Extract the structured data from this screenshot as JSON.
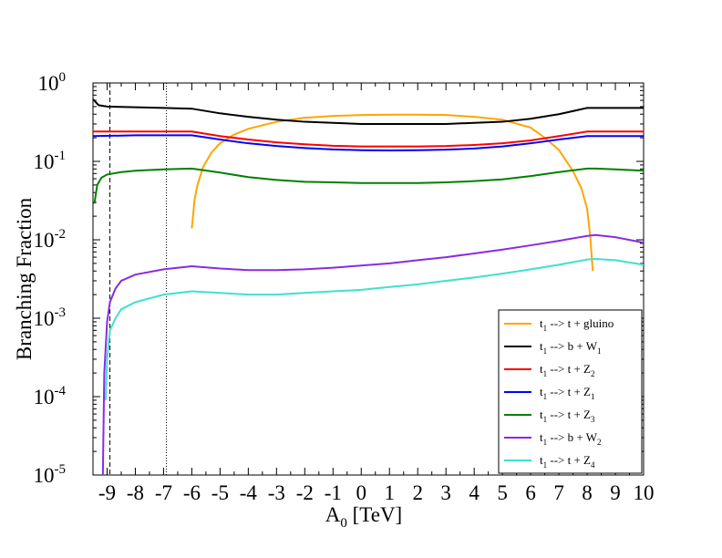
{
  "chart_data": {
    "type": "line",
    "xlabel": "A",
    "xlabel_sub": "0",
    "xlabel_unit": " [TeV]",
    "ylabel": "Branching Fraction",
    "xlim": [
      -9.5,
      10
    ],
    "ylim": [
      1e-05,
      1
    ],
    "yscale": "log",
    "x_ticks": [
      -9,
      -8,
      -7,
      -6,
      -5,
      -4,
      -3,
      -2,
      -1,
      0,
      1,
      2,
      3,
      4,
      5,
      6,
      7,
      8,
      9,
      10
    ],
    "y_ticks": [
      {
        "value": 1e-05,
        "base": "10",
        "exp": "-5"
      },
      {
        "value": 0.0001,
        "base": "10",
        "exp": "-4"
      },
      {
        "value": 0.001,
        "base": "10",
        "exp": "-3"
      },
      {
        "value": 0.01,
        "base": "10",
        "exp": "-2"
      },
      {
        "value": 0.1,
        "base": "10",
        "exp": "-1"
      },
      {
        "value": 1,
        "base": "10",
        "exp": "0"
      }
    ],
    "vertical_lines": [
      {
        "x": -8.9,
        "style": "dashed"
      },
      {
        "x": -6.9,
        "style": "dotted"
      }
    ],
    "legend_position": "bottom-right",
    "series": [
      {
        "name": "t1 --> t + gluino",
        "label_main": "t",
        "label_sub": "1",
        "label_rest": " --> t + gluino",
        "label_sub2": "",
        "color": "#ffa500",
        "points": [
          [
            -6.0,
            0.014
          ],
          [
            -5.9,
            0.033
          ],
          [
            -5.8,
            0.05
          ],
          [
            -5.6,
            0.085
          ],
          [
            -5.3,
            0.13
          ],
          [
            -5.0,
            0.17
          ],
          [
            -4.5,
            0.22
          ],
          [
            -4.0,
            0.26
          ],
          [
            -3.0,
            0.32
          ],
          [
            -2.0,
            0.36
          ],
          [
            -1.0,
            0.38
          ],
          [
            0.0,
            0.39
          ],
          [
            1.0,
            0.395
          ],
          [
            2.0,
            0.395
          ],
          [
            3.0,
            0.39
          ],
          [
            4.0,
            0.37
          ],
          [
            5.0,
            0.34
          ],
          [
            6.0,
            0.27
          ],
          [
            6.5,
            0.2
          ],
          [
            7.0,
            0.14
          ],
          [
            7.5,
            0.075
          ],
          [
            7.8,
            0.045
          ],
          [
            8.0,
            0.025
          ],
          [
            8.1,
            0.012
          ],
          [
            8.15,
            0.007
          ],
          [
            8.2,
            0.004
          ]
        ]
      },
      {
        "name": "t1 --> b + W1",
        "label_main": "t",
        "label_sub": "1",
        "label_rest": " --> b + W",
        "label_sub2": "1",
        "color": "#000000",
        "points": [
          [
            -9.5,
            0.62
          ],
          [
            -9.3,
            0.52
          ],
          [
            -9.0,
            0.5
          ],
          [
            -8.0,
            0.49
          ],
          [
            -7.0,
            0.48
          ],
          [
            -6.0,
            0.47
          ],
          [
            -5.0,
            0.41
          ],
          [
            -4.0,
            0.37
          ],
          [
            -3.0,
            0.34
          ],
          [
            -2.0,
            0.32
          ],
          [
            -1.0,
            0.31
          ],
          [
            0.0,
            0.3
          ],
          [
            1.0,
            0.3
          ],
          [
            2.0,
            0.3
          ],
          [
            3.0,
            0.3
          ],
          [
            4.0,
            0.31
          ],
          [
            5.0,
            0.32
          ],
          [
            6.0,
            0.35
          ],
          [
            7.0,
            0.4
          ],
          [
            8.0,
            0.48
          ],
          [
            8.3,
            0.48
          ],
          [
            9.0,
            0.48
          ],
          [
            10.0,
            0.48
          ]
        ]
      },
      {
        "name": "t1 --> t + Z2",
        "label_main": "t",
        "label_sub": "1",
        "label_rest": " --> t + Z",
        "label_sub2": "2",
        "color": "#ff0000",
        "points": [
          [
            -9.5,
            0.24
          ],
          [
            -8.0,
            0.24
          ],
          [
            -7.0,
            0.24
          ],
          [
            -6.0,
            0.24
          ],
          [
            -5.0,
            0.21
          ],
          [
            -4.0,
            0.19
          ],
          [
            -3.0,
            0.175
          ],
          [
            -2.0,
            0.165
          ],
          [
            -1.0,
            0.158
          ],
          [
            0.0,
            0.155
          ],
          [
            1.0,
            0.155
          ],
          [
            2.0,
            0.155
          ],
          [
            3.0,
            0.157
          ],
          [
            4.0,
            0.162
          ],
          [
            5.0,
            0.17
          ],
          [
            6.0,
            0.185
          ],
          [
            7.0,
            0.21
          ],
          [
            8.0,
            0.24
          ],
          [
            8.3,
            0.24
          ],
          [
            10.0,
            0.24
          ]
        ]
      },
      {
        "name": "t1 --> t + Z1",
        "label_main": "t",
        "label_sub": "1",
        "label_rest": " --> t + Z",
        "label_sub2": "1",
        "color": "#0000ff",
        "points": [
          [
            -9.5,
            0.21
          ],
          [
            -8.0,
            0.215
          ],
          [
            -7.0,
            0.215
          ],
          [
            -6.0,
            0.215
          ],
          [
            -5.0,
            0.19
          ],
          [
            -4.0,
            0.17
          ],
          [
            -3.0,
            0.157
          ],
          [
            -2.0,
            0.148
          ],
          [
            -1.0,
            0.142
          ],
          [
            0.0,
            0.139
          ],
          [
            1.0,
            0.138
          ],
          [
            2.0,
            0.139
          ],
          [
            3.0,
            0.141
          ],
          [
            4.0,
            0.146
          ],
          [
            5.0,
            0.155
          ],
          [
            6.0,
            0.17
          ],
          [
            7.0,
            0.19
          ],
          [
            8.0,
            0.21
          ],
          [
            8.3,
            0.21
          ],
          [
            10.0,
            0.21
          ]
        ]
      },
      {
        "name": "t1 --> t + Z3",
        "label_main": "t",
        "label_sub": "1",
        "label_rest": " --> t + Z",
        "label_sub2": "3",
        "color": "#008000",
        "points": [
          [
            -9.45,
            0.029
          ],
          [
            -9.35,
            0.05
          ],
          [
            -9.2,
            0.062
          ],
          [
            -9.0,
            0.068
          ],
          [
            -8.5,
            0.073
          ],
          [
            -8.0,
            0.076
          ],
          [
            -7.0,
            0.079
          ],
          [
            -6.0,
            0.081
          ],
          [
            -5.0,
            0.072
          ],
          [
            -4.0,
            0.063
          ],
          [
            -3.0,
            0.058
          ],
          [
            -2.0,
            0.055
          ],
          [
            -1.0,
            0.054
          ],
          [
            0.0,
            0.053
          ],
          [
            1.0,
            0.053
          ],
          [
            2.0,
            0.053
          ],
          [
            3.0,
            0.054
          ],
          [
            4.0,
            0.056
          ],
          [
            5.0,
            0.059
          ],
          [
            6.0,
            0.065
          ],
          [
            7.0,
            0.073
          ],
          [
            8.0,
            0.081
          ],
          [
            8.3,
            0.081
          ],
          [
            9.0,
            0.079
          ],
          [
            10.0,
            0.076
          ]
        ]
      },
      {
        "name": "t1 --> b + W2",
        "label_main": "t",
        "label_sub": "1",
        "label_rest": " --> b + W",
        "label_sub2": "2",
        "color": "#8a2be2",
        "points": [
          [
            -9.15,
            1e-05
          ],
          [
            -9.1,
            0.0002
          ],
          [
            -9.0,
            0.0009
          ],
          [
            -8.9,
            0.0016
          ],
          [
            -8.7,
            0.0024
          ],
          [
            -8.5,
            0.003
          ],
          [
            -8.0,
            0.0036
          ],
          [
            -7.0,
            0.0042
          ],
          [
            -6.0,
            0.0046
          ],
          [
            -5.0,
            0.0043
          ],
          [
            -4.0,
            0.0041
          ],
          [
            -3.0,
            0.0041
          ],
          [
            -2.0,
            0.0042
          ],
          [
            -1.0,
            0.0044
          ],
          [
            0.0,
            0.0047
          ],
          [
            1.0,
            0.005
          ],
          [
            2.0,
            0.0055
          ],
          [
            3.0,
            0.006
          ],
          [
            4.0,
            0.0067
          ],
          [
            5.0,
            0.0075
          ],
          [
            6.0,
            0.0085
          ],
          [
            7.0,
            0.0097
          ],
          [
            8.0,
            0.0112
          ],
          [
            8.3,
            0.0115
          ],
          [
            9.0,
            0.0108
          ],
          [
            10.0,
            0.0092
          ]
        ]
      },
      {
        "name": "t1 --> t + Z4",
        "label_main": "t",
        "label_sub": "1",
        "label_rest": " --> t + Z",
        "label_sub2": "4",
        "color": "#40e0d0",
        "points": [
          [
            -9.05,
            9e-05
          ],
          [
            -9.0,
            0.0003
          ],
          [
            -8.9,
            0.0007
          ],
          [
            -8.7,
            0.001
          ],
          [
            -8.5,
            0.0013
          ],
          [
            -8.0,
            0.0016
          ],
          [
            -7.0,
            0.002
          ],
          [
            -6.0,
            0.0022
          ],
          [
            -5.0,
            0.0021
          ],
          [
            -4.0,
            0.002
          ],
          [
            -3.0,
            0.002
          ],
          [
            -2.0,
            0.0021
          ],
          [
            -1.0,
            0.0022
          ],
          [
            0.0,
            0.0023
          ],
          [
            1.0,
            0.0025
          ],
          [
            2.0,
            0.0027
          ],
          [
            3.0,
            0.003
          ],
          [
            4.0,
            0.0033
          ],
          [
            5.0,
            0.0037
          ],
          [
            6.0,
            0.0042
          ],
          [
            7.0,
            0.0048
          ],
          [
            8.0,
            0.0056
          ],
          [
            8.3,
            0.0057
          ],
          [
            9.0,
            0.0055
          ],
          [
            10.0,
            0.0048
          ]
        ]
      }
    ]
  }
}
